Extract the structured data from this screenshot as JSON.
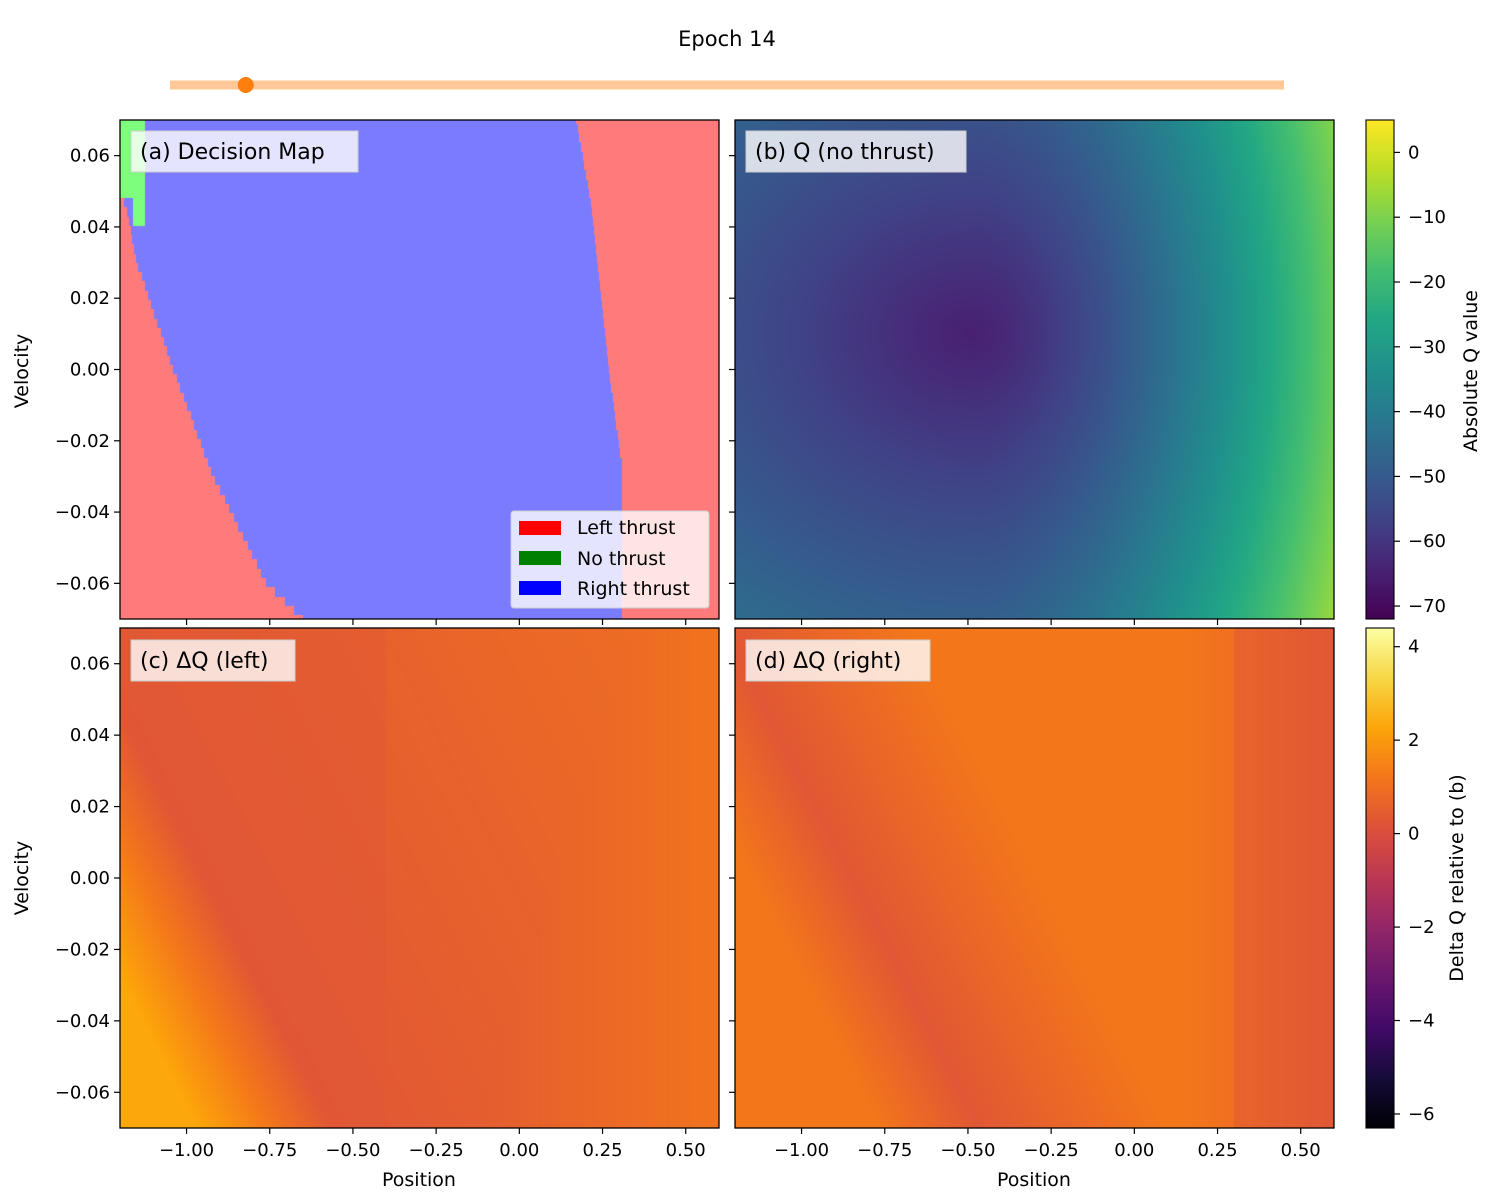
{
  "header": {
    "title": "Epoch 14",
    "slider": {
      "position": 0.068
    }
  },
  "colors": {
    "slider_track": "#ffc896",
    "slider_knob": "#ff7f0e",
    "decision_left": "#ff7b7b",
    "decision_none": "#7dff7d",
    "decision_right": "#7b7bff",
    "legend_left": "#ff0000",
    "legend_none": "#008000",
    "legend_right": "#0000ff"
  },
  "chart_data": [
    {
      "type": "heatmap",
      "id": "decision_map",
      "title": "(a) Decision Map",
      "xlabel": "",
      "ylabel": "Velocity",
      "xlim": [
        -1.2,
        0.6
      ],
      "ylim": [
        -0.07,
        0.07
      ],
      "xticks": [
        "−1.00",
        "−0.75",
        "−0.50",
        "−0.25",
        "0.00",
        "0.25",
        "0.50"
      ],
      "yticks": [
        "0.06",
        "0.04",
        "0.02",
        "0.00",
        "−0.02",
        "−0.04",
        "−0.06"
      ],
      "legend": {
        "position": "lower-right",
        "entries": [
          "Left thrust",
          "No thrust",
          "Right thrust"
        ]
      },
      "boundary_left": [
        [
          0.07,
          -1.2
        ],
        [
          0.049,
          -1.2
        ],
        [
          0.045,
          -1.18
        ],
        [
          0.03,
          -1.15
        ],
        [
          0.0,
          -1.04
        ],
        [
          -0.03,
          -0.92
        ],
        [
          -0.06,
          -0.76
        ],
        [
          -0.07,
          -0.65
        ]
      ],
      "boundary_right": [
        [
          0.07,
          0.17
        ],
        [
          0.05,
          0.21
        ],
        [
          0.034,
          0.23
        ],
        [
          0.0,
          0.27
        ],
        [
          -0.015,
          0.29
        ],
        [
          -0.027,
          0.31
        ],
        [
          -0.04,
          0.31
        ],
        [
          -0.07,
          0.31
        ]
      ],
      "no_thrust_region": [
        [
          0.07,
          -1.2,
          -1.12
        ],
        [
          0.049,
          -1.2,
          -1.12
        ],
        [
          0.041,
          -1.14,
          -1.12
        ],
        [
          0.04,
          -1.14,
          -1.12
        ]
      ]
    },
    {
      "type": "heatmap",
      "id": "q_no_thrust",
      "title": "(b) Q (no thrust)",
      "xlabel": "",
      "ylabel": "",
      "xlim": [
        -1.2,
        0.6
      ],
      "ylim": [
        -0.07,
        0.07
      ],
      "min_point": {
        "x": -0.5,
        "y": 0.01,
        "value": -65
      },
      "right_edge_value": -12,
      "left_bottom_value": -35
    },
    {
      "type": "heatmap",
      "id": "dq_left",
      "title": "(c) ΔQ (left)",
      "xlabel": "Position",
      "ylabel": "Velocity",
      "xlim": [
        -1.2,
        0.6
      ],
      "ylim": [
        -0.07,
        0.07
      ],
      "xticks": [
        "−1.00",
        "−0.75",
        "−0.50",
        "−0.25",
        "0.00",
        "0.25",
        "0.50"
      ],
      "yticks": [
        "0.06",
        "0.04",
        "0.02",
        "0.00",
        "−0.02",
        "−0.04",
        "−0.06"
      ],
      "peak_value": 2.3,
      "base_value": 0.3
    },
    {
      "type": "heatmap",
      "id": "dq_right",
      "title": "(d) ΔQ (right)",
      "xlabel": "Position",
      "ylabel": "",
      "xlim": [
        -1.2,
        0.6
      ],
      "ylim": [
        -0.07,
        0.07
      ],
      "xticks": [
        "−1.00",
        "−0.75",
        "−0.50",
        "−0.25",
        "0.00",
        "0.25",
        "0.50"
      ],
      "peak_value": 1.2,
      "base_value": 0.3
    }
  ],
  "colorbars": {
    "absolute": {
      "label": "Absolute Q value",
      "range": [
        -72,
        5
      ],
      "ticks": [
        "0",
        "−10",
        "−20",
        "−30",
        "−40",
        "−50",
        "−60",
        "−70"
      ],
      "tick_values": [
        0,
        -10,
        -20,
        -30,
        -40,
        -50,
        -60,
        -70
      ],
      "colormap": "viridis"
    },
    "delta": {
      "label": "Delta Q relative to (b)",
      "range": [
        -6.3,
        4.4
      ],
      "ticks": [
        "4",
        "2",
        "0",
        "−2",
        "−4",
        "−6"
      ],
      "tick_values": [
        4,
        2,
        0,
        -2,
        -4,
        -6
      ],
      "colormap": "inferno"
    }
  }
}
